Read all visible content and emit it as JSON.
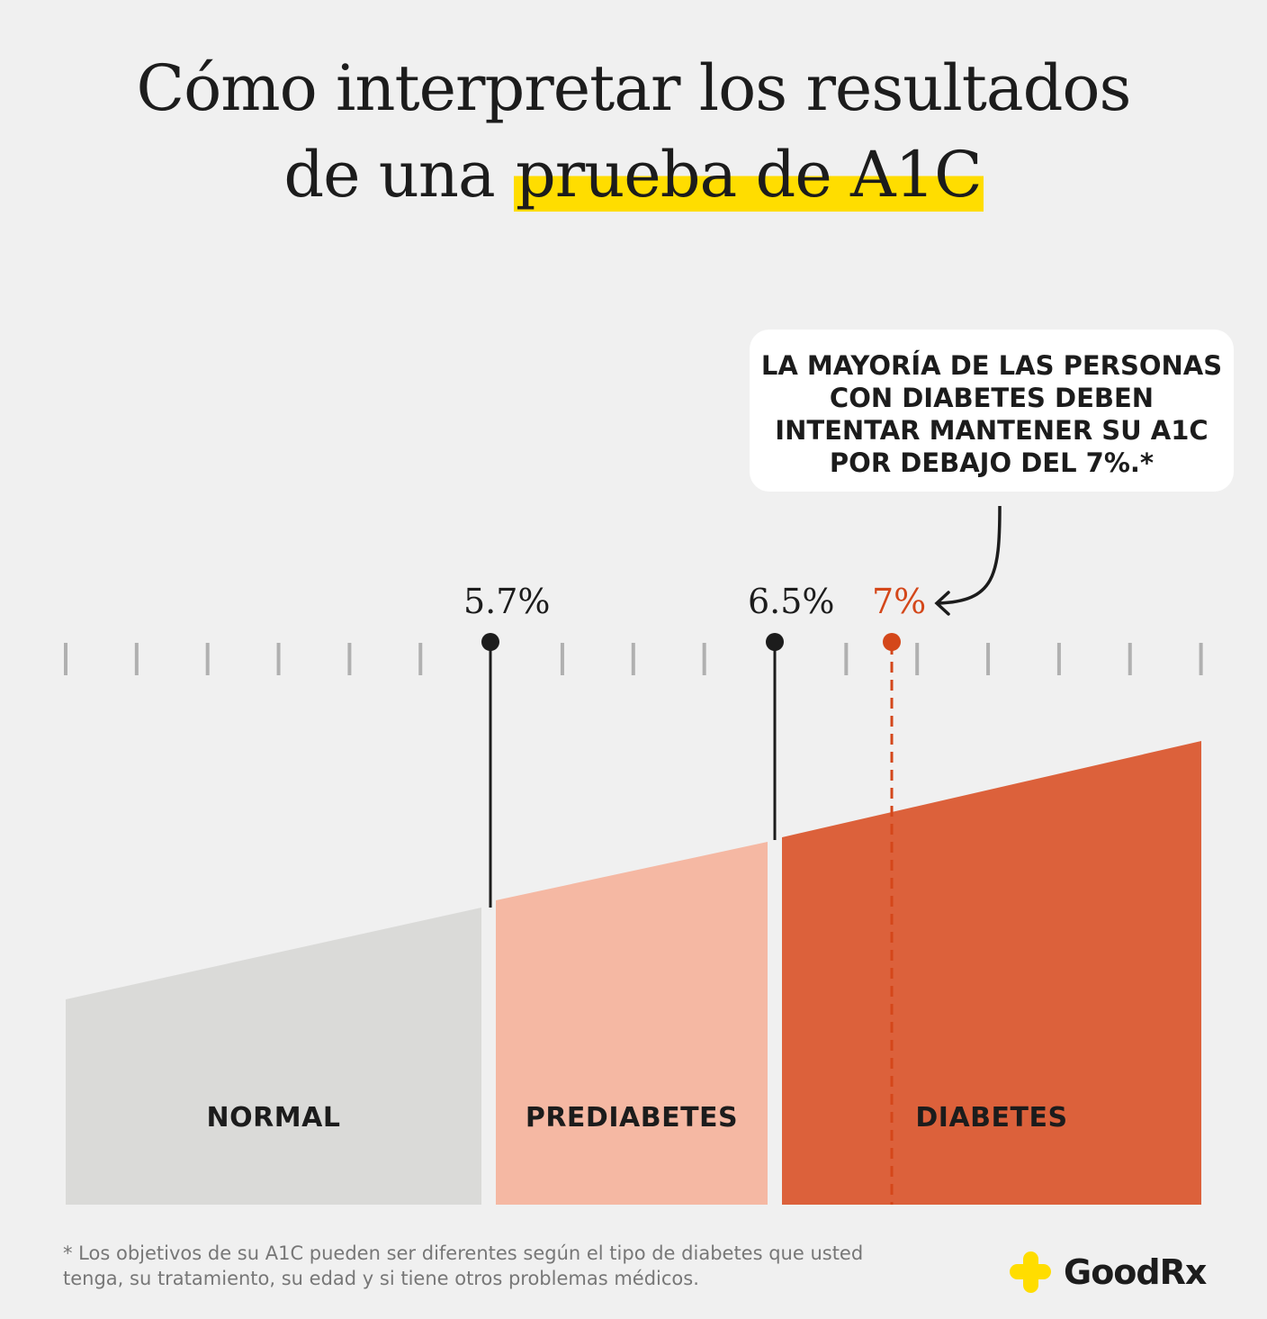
{
  "title": {
    "line1": "Cómo interpretar los resultados",
    "line2_plain": "de una ",
    "line2_highlight": "prueba de A1C"
  },
  "callout": {
    "text": "LA MAYORÍA DE LAS PERSONAS CON DIABETES DEBEN INTENTAR MANTENER SU A1C POR DEBAJO DEL 7%.*"
  },
  "markers": [
    {
      "label": "5.7%",
      "value": 5.7,
      "color": "#1c1c1c"
    },
    {
      "label": "6.5%",
      "value": 6.5,
      "color": "#1c1c1c"
    },
    {
      "label": "7%",
      "value": 7.0,
      "color": "#d4471a"
    }
  ],
  "segments": [
    {
      "label": "NORMAL",
      "color": "#dadad8"
    },
    {
      "label": "PREDIABETES",
      "color": "#f5b8a3"
    },
    {
      "label": "DIABETES",
      "color": "#dc613b"
    }
  ],
  "footnote": "* Los objetivos de su A1C pueden ser diferentes según el tipo de diabetes que usted tenga, su tratamiento, su edad y si tiene otros problemas médicos.",
  "logo": {
    "text": "GoodRx",
    "color": "#ffdd00"
  }
}
